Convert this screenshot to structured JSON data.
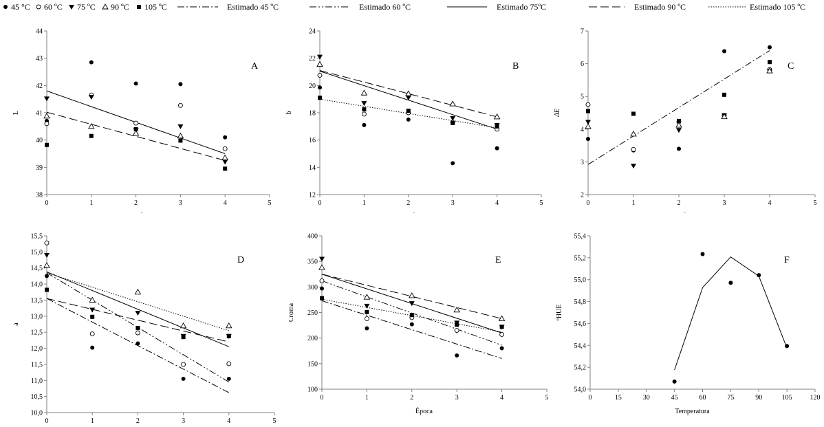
{
  "legend": {
    "markers": [
      {
        "label": "45 °C",
        "marker": "filled-circle"
      },
      {
        "label": "60 ºC",
        "marker": "open-circle"
      },
      {
        "label": "75 ºC",
        "marker": "filled-triangle-down"
      },
      {
        "label": "90 ºC",
        "marker": "open-triangle-up"
      },
      {
        "label": "105 ºC",
        "marker": "filled-square"
      }
    ],
    "lines": [
      {
        "label": "Estimado 45 ºC",
        "dash": "dash-dot"
      },
      {
        "label": "Estimado 60 ºC",
        "dash": "dash-dot-dot"
      },
      {
        "label": "Estimado  75ºC",
        "dash": "solid"
      },
      {
        "label": "Estimado 90 ºC",
        "dash": "long-dash"
      },
      {
        "label": "Estimado 105 ºC",
        "dash": "dotted"
      }
    ]
  },
  "chart_data": [
    {
      "type": "scatter",
      "panel_label": "A",
      "xlabel": "",
      "ylabel": "L",
      "xlim": [
        0,
        5
      ],
      "ylim": [
        38,
        44
      ],
      "xticks": [
        "0",
        "1",
        "2",
        "3",
        "4",
        "5"
      ],
      "yticks": [
        "38",
        "39",
        "40",
        "41",
        "42",
        "43",
        "44"
      ],
      "series": [
        {
          "name": "45 °C",
          "x": [
            0,
            1,
            2,
            3,
            4
          ],
          "y": [
            40.7,
            42.85,
            42.07,
            42.05,
            40.1
          ]
        },
        {
          "name": "60 ºC",
          "x": [
            0,
            1,
            2,
            3,
            4
          ],
          "y": [
            40.6,
            41.65,
            40.62,
            41.27,
            39.68
          ]
        },
        {
          "name": "75 ºC",
          "x": [
            0,
            1,
            2,
            3,
            4
          ],
          "y": [
            41.52,
            41.58,
            40.36,
            40.5,
            39.2
          ]
        },
        {
          "name": "90 ºC",
          "x": [
            0,
            1,
            2,
            3,
            4
          ],
          "y": [
            40.88,
            40.5,
            40.25,
            40.15,
            39.35
          ]
        },
        {
          "name": "105 ºC",
          "x": [
            0,
            1,
            2,
            3,
            4
          ],
          "y": [
            39.82,
            40.15,
            40.4,
            39.98,
            38.95
          ]
        }
      ],
      "fits": [
        {
          "name": "Estimado  75ºC",
          "x": [
            0,
            4
          ],
          "y": [
            41.8,
            39.5
          ]
        },
        {
          "name": "Estimado 90 ºC",
          "x": [
            0,
            4
          ],
          "y": [
            41.02,
            39.25
          ]
        }
      ]
    },
    {
      "type": "scatter",
      "panel_label": "B",
      "xlabel": "",
      "ylabel": "b",
      "xlim": [
        0,
        5
      ],
      "ylim": [
        12,
        24
      ],
      "xticks": [
        "0",
        "1",
        "2",
        "3",
        "4",
        "5"
      ],
      "yticks": [
        "12",
        "14",
        "16",
        "18",
        "20",
        "22",
        "24"
      ],
      "series": [
        {
          "name": "45 °C",
          "x": [
            0,
            1,
            2,
            3,
            4
          ],
          "y": [
            19.85,
            17.1,
            17.5,
            14.3,
            15.4
          ]
        },
        {
          "name": "60 ºC",
          "x": [
            0,
            1,
            2,
            3,
            4
          ],
          "y": [
            20.75,
            17.9,
            18.0,
            17.3,
            16.8
          ]
        },
        {
          "name": "75 ºC",
          "x": [
            0,
            1,
            2,
            3,
            4
          ],
          "y": [
            22.1,
            18.7,
            19.1,
            17.6,
            17.1
          ]
        },
        {
          "name": "90 ºC",
          "x": [
            0,
            1,
            2,
            3,
            4
          ],
          "y": [
            21.55,
            19.45,
            19.4,
            18.65,
            17.7
          ]
        },
        {
          "name": "105 ºC",
          "x": [
            0,
            1,
            2,
            3,
            4
          ],
          "y": [
            19.1,
            18.25,
            18.15,
            17.25,
            17.0
          ]
        }
      ],
      "fits": [
        {
          "name": "Estimado  75ºC",
          "x": [
            0,
            4
          ],
          "y": [
            21.05,
            16.8
          ]
        },
        {
          "name": "Estimado 90 ºC",
          "x": [
            0,
            4
          ],
          "y": [
            21.1,
            17.7
          ]
        },
        {
          "name": "Estimado 105 ºC",
          "x": [
            0,
            4
          ],
          "y": [
            19.0,
            16.9
          ]
        }
      ]
    },
    {
      "type": "scatter",
      "panel_label": "C",
      "xlabel": "",
      "ylabel": "ΔE",
      "xlim": [
        0,
        5
      ],
      "ylim": [
        2,
        7
      ],
      "xticks": [
        "0",
        "1",
        "2",
        "3",
        "4",
        "5"
      ],
      "yticks": [
        "2",
        "3",
        "4",
        "5",
        "6",
        "7"
      ],
      "series": [
        {
          "name": "45 °C",
          "x": [
            0,
            1,
            2,
            3,
            4
          ],
          "y": [
            3.7,
            3.35,
            3.4,
            6.38,
            6.5
          ]
        },
        {
          "name": "60 ºC",
          "x": [
            0,
            1,
            2,
            3,
            4
          ],
          "y": [
            4.75,
            3.38,
            4.22,
            4.42,
            5.82
          ]
        },
        {
          "name": "75 ºC",
          "x": [
            0,
            1,
            2,
            3,
            4
          ],
          "y": [
            4.22,
            2.88,
            3.97,
            4.42,
            5.78
          ]
        },
        {
          "name": "90 ºC",
          "x": [
            0,
            1,
            2,
            3,
            4
          ],
          "y": [
            4.08,
            3.85,
            4.12,
            4.38,
            5.78
          ]
        },
        {
          "name": "105 ºC",
          "x": [
            0,
            1,
            2,
            3,
            4
          ],
          "y": [
            4.55,
            4.47,
            4.25,
            5.05,
            6.05
          ]
        }
      ],
      "fits": [
        {
          "name": "Estimado 45 ºC",
          "x": [
            0,
            4
          ],
          "y": [
            2.92,
            6.4
          ]
        }
      ]
    },
    {
      "type": "scatter",
      "panel_label": "D",
      "xlabel": "Época",
      "ylabel": "a",
      "xlim": [
        0,
        5
      ],
      "ylim": [
        10.0,
        15.5
      ],
      "xticks": [
        "0",
        "1",
        "2",
        "3",
        "4",
        "5"
      ],
      "yticks": [
        "10,0",
        "10,5",
        "11,0",
        "11,5",
        "12,0",
        "12,5",
        "13,0",
        "13,5",
        "14,0",
        "14,5",
        "15,0",
        "15,5"
      ],
      "series": [
        {
          "name": "45 °C",
          "x": [
            0,
            1,
            2,
            3,
            4
          ],
          "y": [
            14.25,
            12.02,
            12.15,
            11.05,
            11.05
          ]
        },
        {
          "name": "60 ºC",
          "x": [
            0,
            1,
            2,
            3,
            4
          ],
          "y": [
            15.28,
            12.45,
            12.48,
            11.5,
            11.52
          ]
        },
        {
          "name": "75 ºC",
          "x": [
            0,
            1,
            2,
            3,
            4
          ],
          "y": [
            14.9,
            13.2,
            13.1,
            12.38,
            12.38
          ]
        },
        {
          "name": "90 ºC",
          "x": [
            0,
            1,
            2,
            3,
            4
          ],
          "y": [
            14.58,
            13.5,
            13.75,
            12.7,
            12.7
          ]
        },
        {
          "name": "105 ºC",
          "x": [
            0,
            1,
            2,
            3,
            4
          ],
          "y": [
            13.82,
            12.98,
            12.63,
            12.35,
            12.38
          ]
        }
      ],
      "fits": [
        {
          "name": "Estimado 45 ºC",
          "x": [
            0,
            4
          ],
          "y": [
            13.55,
            10.62
          ]
        },
        {
          "name": "Estimado 60 ºC",
          "x": [
            0,
            4
          ],
          "y": [
            14.35,
            10.95
          ]
        },
        {
          "name": "Estimado  75ºC",
          "x": [
            0,
            4
          ],
          "y": [
            14.38,
            12.05
          ]
        },
        {
          "name": "Estimado 90 ºC",
          "x": [
            0,
            4
          ],
          "y": [
            13.55,
            12.2
          ]
        },
        {
          "name": "Estimado 105 ºC",
          "x": [
            0,
            4
          ],
          "y": [
            14.35,
            12.55
          ]
        }
      ]
    },
    {
      "type": "scatter",
      "panel_label": "E",
      "xlabel": "Época",
      "ylabel": "Croma",
      "xlim": [
        0,
        5
      ],
      "ylim": [
        100,
        400
      ],
      "xticks": [
        "0",
        "1",
        "2",
        "3",
        "4",
        "5"
      ],
      "yticks": [
        "100",
        "150",
        "200",
        "250",
        "300",
        "350",
        "400"
      ],
      "series": [
        {
          "name": "45 °C",
          "x": [
            0,
            1,
            2,
            3,
            4
          ],
          "y": [
            297,
            219,
            227,
            166,
            180
          ]
        },
        {
          "name": "60 ºC",
          "x": [
            0,
            1,
            2,
            3,
            4
          ],
          "y": [
            312,
            238,
            240,
            215,
            207
          ]
        },
        {
          "name": "75 ºC",
          "x": [
            0,
            1,
            2,
            3,
            4
          ],
          "y": [
            355,
            263,
            268,
            230,
            222
          ]
        },
        {
          "name": "90 ºC",
          "x": [
            0,
            1,
            2,
            3,
            4
          ],
          "y": [
            338,
            280,
            283,
            255,
            238
          ]
        },
        {
          "name": "105 ºC",
          "x": [
            0,
            1,
            2,
            3,
            4
          ],
          "y": [
            278,
            251,
            245,
            226,
            222
          ]
        }
      ],
      "fits": [
        {
          "name": "Estimado 45 ºC",
          "x": [
            0,
            4
          ],
          "y": [
            273,
            160
          ]
        },
        {
          "name": "Estimado 60 ºC",
          "x": [
            0,
            4
          ],
          "y": [
            312,
            186
          ]
        },
        {
          "name": "Estimado  75ºC",
          "x": [
            0,
            4
          ],
          "y": [
            325,
            210
          ]
        },
        {
          "name": "Estimado 90 ºC",
          "x": [
            0,
            4
          ],
          "y": [
            325,
            238
          ]
        },
        {
          "name": "Estimado 105 ºC",
          "x": [
            0,
            4
          ],
          "y": [
            276,
            212
          ]
        }
      ]
    },
    {
      "type": "scatter",
      "panel_label": "F",
      "xlabel": "Temperatura",
      "ylabel": "ºHUE",
      "xlim": [
        0,
        120
      ],
      "ylim": [
        54.0,
        55.6
      ],
      "xticks": [
        "0",
        "15",
        "30",
        "45",
        "60",
        "75",
        "90",
        "105",
        "120"
      ],
      "yticks": [
        "54,0",
        "54,2",
        "54,4",
        "54,6",
        "54,8",
        "55,0",
        "55,2",
        "55,4"
      ],
      "series": [
        {
          "name": "",
          "x": [
            45,
            60,
            75,
            90,
            105
          ],
          "y": [
            54.08,
            55.41,
            55.11,
            55.19,
            54.45
          ]
        }
      ],
      "fits": [
        {
          "name": "",
          "x": [
            45,
            60,
            75,
            90,
            105
          ],
          "y": [
            54.2,
            55.06,
            55.38,
            55.18,
            54.43
          ]
        }
      ]
    }
  ]
}
